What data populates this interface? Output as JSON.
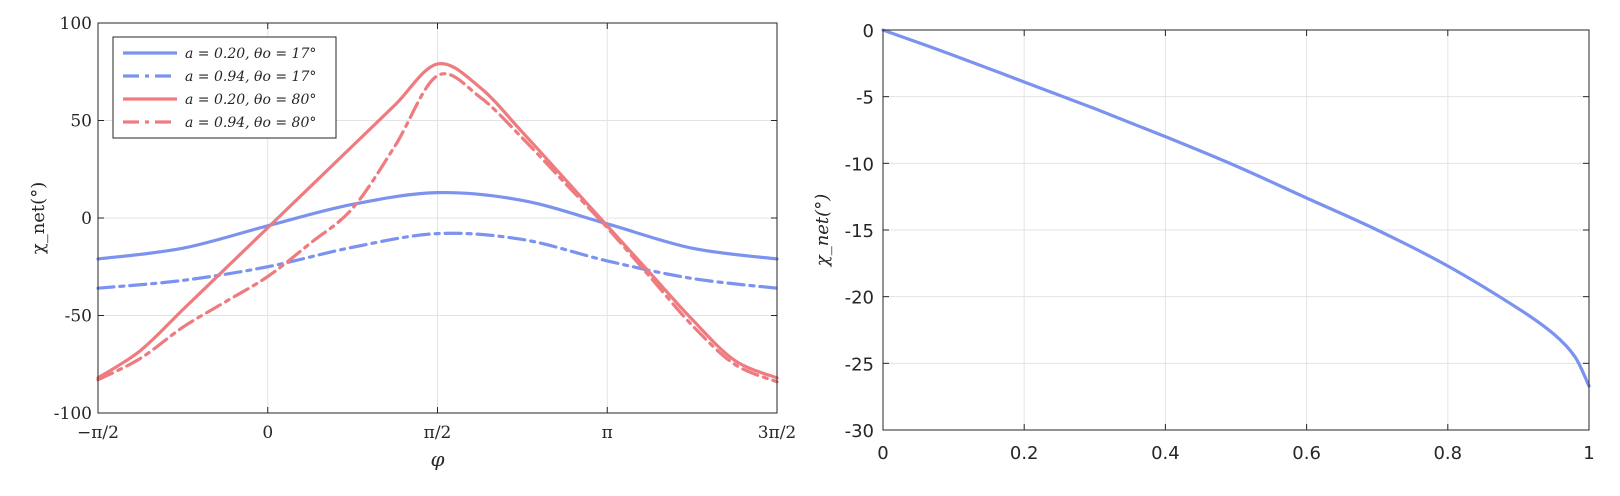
{
  "chart_data": [
    {
      "type": "line",
      "xlabel": "φ",
      "ylabel": "χ_net(°)",
      "xlim": [
        -1.5708,
        4.7124
      ],
      "ylim": [
        -100,
        100
      ],
      "grid": true,
      "legend_placement": "top-left",
      "x_tick_labels": [
        "−π/2",
        "0",
        "π/2",
        "π",
        "3π/2"
      ],
      "y_tick_labels": [
        "100",
        "50",
        "0",
        "-50",
        "-100"
      ],
      "y_ticks": [
        100,
        50,
        0,
        -50,
        -100
      ],
      "series": [
        {
          "name": "a = 0.20, θo = 17°",
          "color": "#7b93ee",
          "dash": "solid",
          "x": [
            -1.5708,
            -0.7854,
            0,
            0.7854,
            1.5708,
            2.3562,
            3.1416,
            3.927,
            4.7124
          ],
          "values": [
            -21,
            -15.5,
            -4,
            7,
            13,
            9,
            -3,
            -15.5,
            -21
          ]
        },
        {
          "name": "a = 0.94, θo = 17°",
          "color": "#7b93ee",
          "dash": "dashdot",
          "x": [
            -1.5708,
            -0.7854,
            0,
            0.7854,
            1.5708,
            2.3562,
            3.1416,
            3.927,
            4.7124
          ],
          "values": [
            -36,
            -32,
            -25,
            -15,
            -8,
            -11,
            -22,
            -31,
            -36
          ]
        },
        {
          "name": "a = 0.20, θo = 80°",
          "color": "#ee7b7f",
          "dash": "solid",
          "x": [
            -1.5708,
            -1.1781,
            -0.7854,
            -0.3927,
            0,
            0.3927,
            0.7854,
            1.1781,
            1.5708,
            1.9635,
            2.3562,
            2.7489,
            3.1416,
            3.5343,
            3.927,
            4.3197,
            4.7124
          ],
          "values": [
            -82,
            -68,
            -47,
            -26,
            -5,
            16,
            37,
            58,
            79,
            67,
            44,
            20,
            -4,
            -28,
            -52,
            -73,
            -82
          ]
        },
        {
          "name": "a = 0.94, θo = 80°",
          "color": "#ee7b7f",
          "dash": "dashdot",
          "x": [
            -1.5708,
            -1.1781,
            -0.7854,
            -0.3927,
            0,
            0.3927,
            0.7854,
            1.1781,
            1.5708,
            1.9635,
            2.3562,
            2.7489,
            3.1416,
            3.5343,
            3.927,
            4.3197,
            4.7124
          ],
          "values": [
            -83,
            -72,
            -56,
            -43,
            -30,
            -13,
            5,
            37,
            73,
            62,
            41,
            18,
            -5,
            -30,
            -55,
            -75,
            -84
          ]
        }
      ]
    },
    {
      "type": "line",
      "xlabel": "",
      "ylabel": "χ_net(°)",
      "xlim": [
        0,
        1
      ],
      "ylim": [
        -30,
        0
      ],
      "grid": true,
      "x_tick_labels": [
        "0",
        "0.2",
        "0.4",
        "0.6",
        "0.8",
        "1"
      ],
      "x_ticks": [
        0,
        0.2,
        0.4,
        0.6,
        0.8,
        1
      ],
      "y_tick_labels": [
        "0",
        "-5",
        "-10",
        "-15",
        "-20",
        "-25",
        "-30"
      ],
      "y_ticks": [
        0,
        -5,
        -10,
        -15,
        -20,
        -25,
        -30
      ],
      "series": [
        {
          "color": "#7b93ee",
          "dash": "solid",
          "x": [
            0,
            0.1,
            0.2,
            0.3,
            0.4,
            0.5,
            0.6,
            0.7,
            0.8,
            0.9,
            0.95,
            0.98,
            1
          ],
          "values": [
            0,
            -1.9,
            -3.9,
            -5.9,
            -8,
            -10.2,
            -12.6,
            -15,
            -17.7,
            -20.9,
            -22.8,
            -24.5,
            -26.7
          ]
        }
      ]
    }
  ]
}
